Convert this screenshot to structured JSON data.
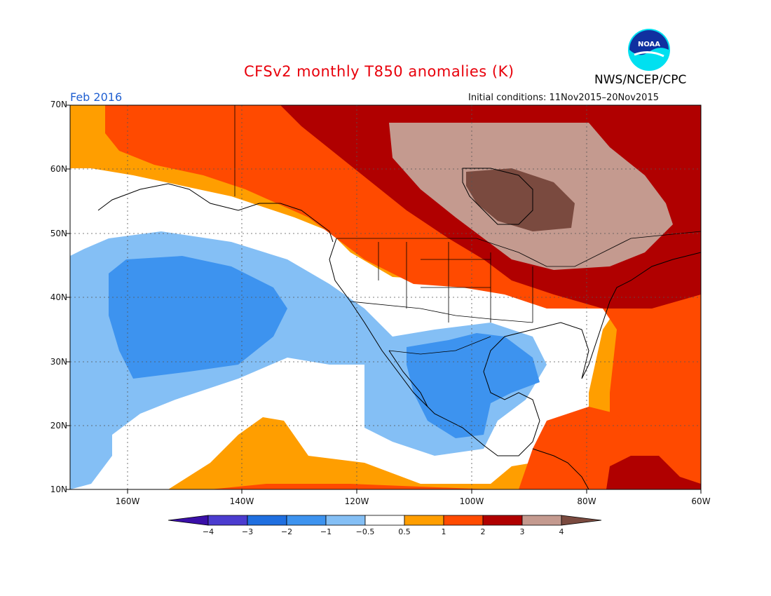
{
  "header": {
    "title": "CFSv2 monthly T850 anomalies (K)",
    "agency": "NWS/NCEP/CPC",
    "valid_month": "Feb 2016",
    "initial_conditions": "Initial conditions: 11Nov2015–20Nov2015"
  },
  "logo": {
    "text": "NOAA",
    "icon": "noaa-logo"
  },
  "axes": {
    "lat_labels": [
      "70N",
      "60N",
      "50N",
      "40N",
      "30N",
      "20N",
      "10N"
    ],
    "lon_labels": [
      "160W",
      "140W",
      "120W",
      "100W",
      "80W",
      "60W"
    ]
  },
  "colorbar": {
    "labels": [
      "−4",
      "−3",
      "−2",
      "−1",
      "−0.5",
      "0.5",
      "1",
      "2",
      "3",
      "4"
    ],
    "colors": [
      "#3a0fa8",
      "#4b3ccf",
      "#1f6fe0",
      "#3d93ef",
      "#84bff5",
      "#ffffff",
      "#ff9e00",
      "#ff4a00",
      "#b00000",
      "#c49a8f",
      "#7a4a3f"
    ]
  },
  "map": {
    "type": "filled contour anomaly map",
    "region": "North America and adjacent Pacific/Atlantic, 10N–70N, 170W–60W",
    "ocean_base_color": "#ffffff"
  }
}
